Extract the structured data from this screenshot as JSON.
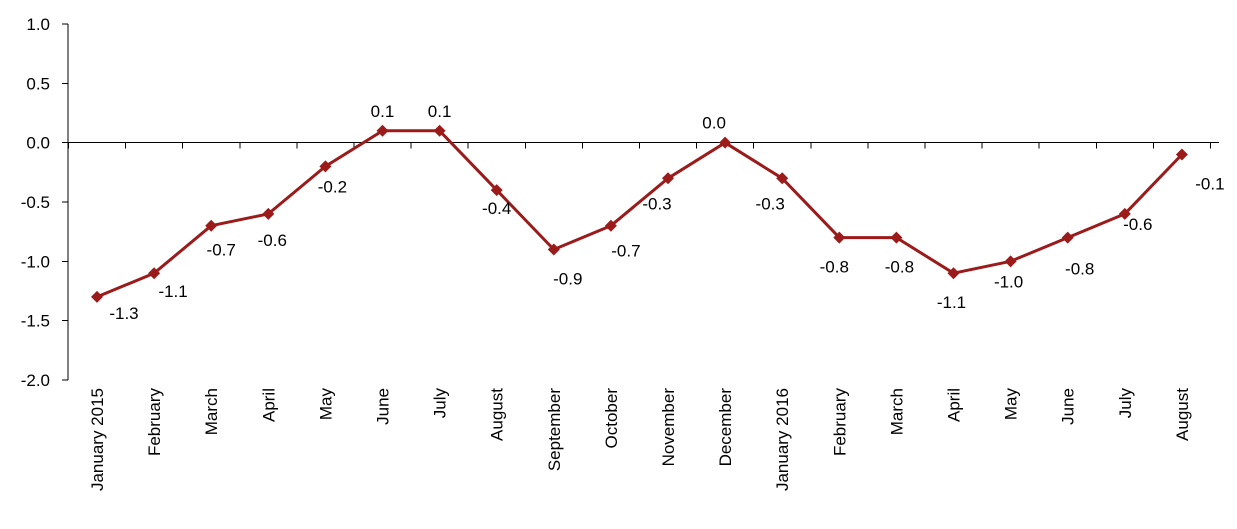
{
  "chart_data": {
    "type": "line",
    "title": "",
    "xlabel": "",
    "ylabel": "",
    "ylim": [
      -2.0,
      1.0
    ],
    "yticks": [
      "1.0",
      "0.5",
      "0.0",
      "-0.5",
      "-1.0",
      "-1.5",
      "-2.0"
    ],
    "ytick_values": [
      1.0,
      0.5,
      0.0,
      -0.5,
      -1.0,
      -1.5,
      -2.0
    ],
    "grid": false,
    "legend": "none",
    "categories": [
      "January 2015",
      "February",
      "March",
      "April",
      "May",
      "June",
      "July",
      "August",
      "September",
      "October",
      "November",
      "December",
      "January 2016",
      "February",
      "March",
      "April",
      "May",
      "June",
      "July",
      "August"
    ],
    "series": [
      {
        "color": "#9B1B1B",
        "marker": "diamond",
        "values": [
          -1.3,
          -1.1,
          -0.7,
          -0.6,
          -0.2,
          0.1,
          0.1,
          -0.4,
          -0.9,
          -0.7,
          -0.3,
          0.0,
          -0.3,
          -0.8,
          -0.8,
          -1.1,
          -1.0,
          -0.8,
          -0.6,
          -0.1
        ],
        "labels": [
          "-1.3",
          "-1.1",
          "-0.7",
          "-0.6",
          "-0.2",
          "0.1",
          "0.1",
          "-0.4",
          "-0.9",
          "-0.7",
          "-0.3",
          "0.0",
          "-0.3",
          "-0.8",
          "-0.8",
          "-1.1",
          "-1.0",
          "-0.8",
          "-0.6",
          "-0.1"
        ]
      }
    ]
  }
}
